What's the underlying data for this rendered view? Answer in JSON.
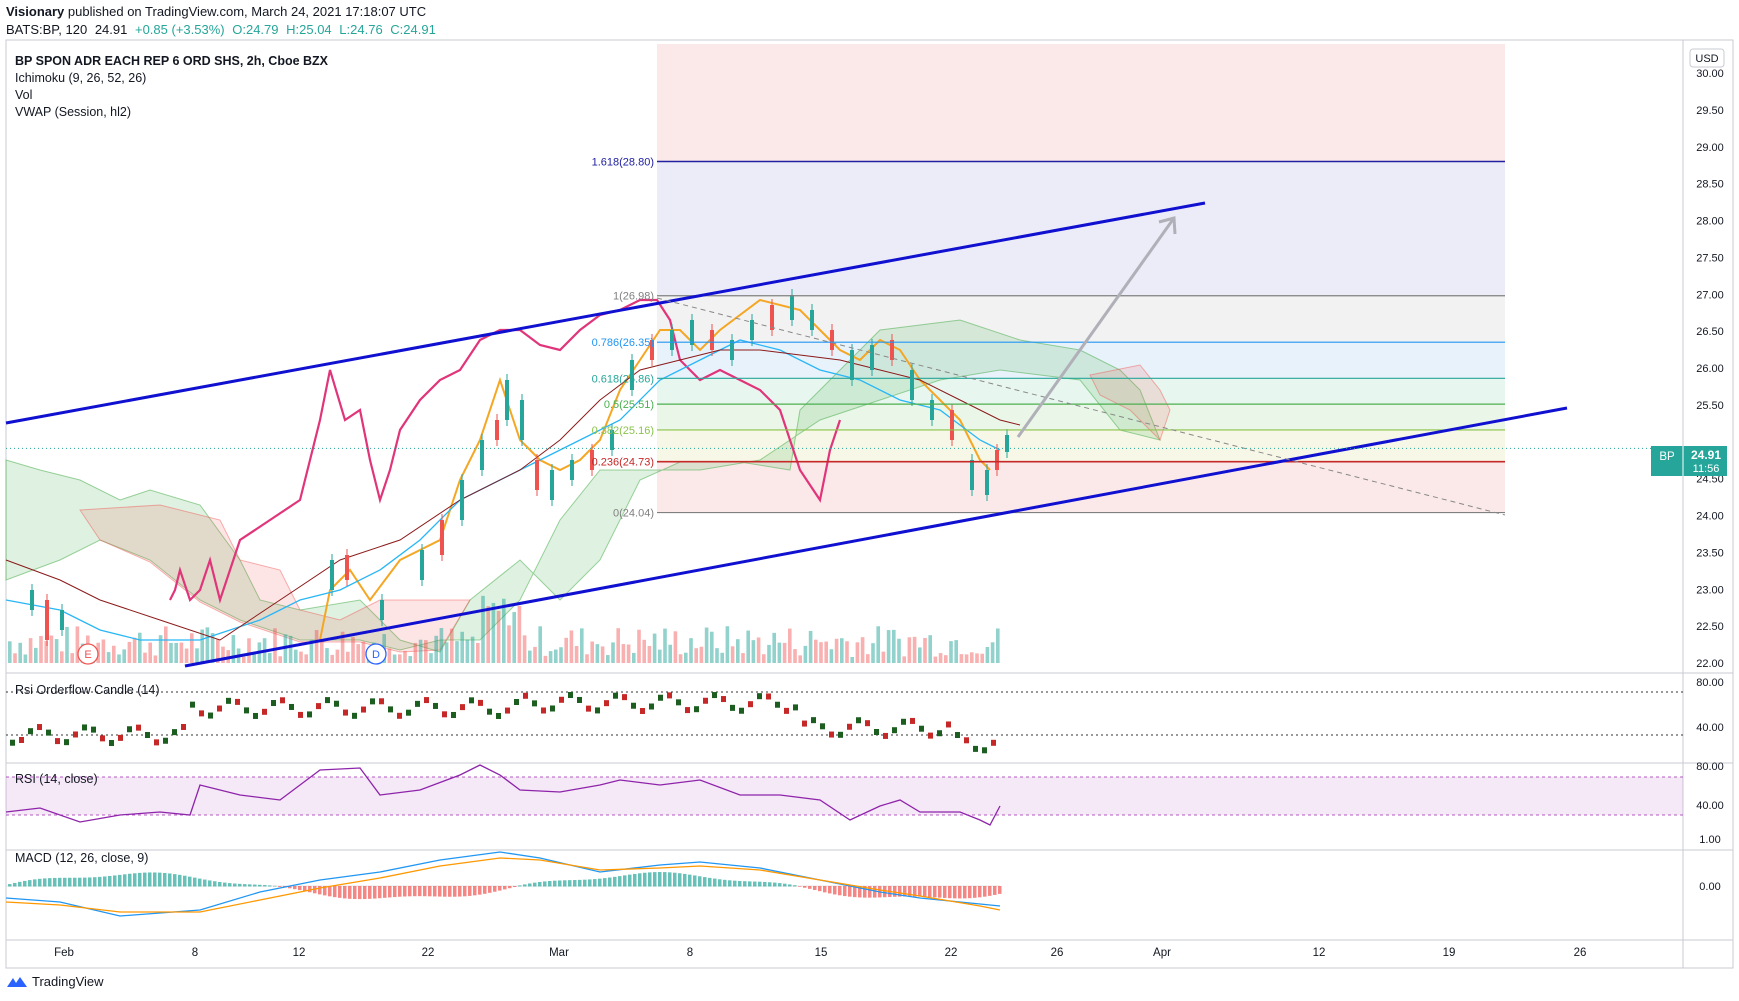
{
  "header": {
    "author": "Visionary",
    "published": "published on TradingView.com, March 24, 2021 17:18:07 UTC",
    "symbol_line": "BATS:BP, 120",
    "price": "24.91",
    "change": "+0.85 (+3.53%)",
    "open": "O:24.79",
    "high": "H:25.04",
    "low": "L:24.76",
    "close": "C:24.91"
  },
  "legend": {
    "title": "BP SPON ADR EACH REP 6 ORD SHS, 2h, Cboe BZX",
    "ichimoku": "Ichimoku (9, 26, 52, 26)",
    "vol": "Vol",
    "vwap": "VWAP (Session, hl2)"
  },
  "panes": {
    "rsi_orderflow": "Rsi Orderflow Candle (14)",
    "rsi": "RSI (14, close)",
    "macd": "MACD (12, 26, close, 9)"
  },
  "price_badge": {
    "symbol": "BP",
    "price": "24.91",
    "timer": "11:56",
    "color": "#26a69a"
  },
  "currency": "USD",
  "footer": {
    "brand": "TradingView"
  },
  "colors": {
    "channel": "#1010d0",
    "fib_ext": "#2020a0",
    "fib_red": "#c62828",
    "rsi_line": "#e0357a",
    "arrow": "#b0b0b8",
    "bull": "#26a69a",
    "bear": "#ef5350"
  },
  "chart_data": {
    "type": "candlestick",
    "title": "BP SPON ADR EACH REP 6 ORD SHS, 2h, Cboe BZX",
    "y_axis": {
      "ylim": [
        22.0,
        30.0
      ],
      "ticks": [
        "30.00",
        "29.50",
        "29.00",
        "28.50",
        "28.00",
        "27.50",
        "27.00",
        "26.50",
        "26.00",
        "25.50",
        "25.00",
        "24.50",
        "24.00",
        "23.50",
        "23.00",
        "22.50",
        "22.00"
      ]
    },
    "x_ticks": [
      "Feb",
      "8",
      "12",
      "22",
      "Mar",
      "8",
      "15",
      "22",
      "26",
      "Apr",
      "12",
      "19",
      "26"
    ],
    "fib_levels": [
      {
        "label": "1.618(28.80)",
        "value": 28.8
      },
      {
        "label": "1(26.98)",
        "value": 26.98
      },
      {
        "label": "0.786(26.35)",
        "value": 26.35
      },
      {
        "label": "0.618(25.86)",
        "value": 25.86
      },
      {
        "label": "0.5(25.51)",
        "value": 25.51
      },
      {
        "label": "0.382(25.16)",
        "value": 25.16
      },
      {
        "label": "0.236(24.73)",
        "value": 24.73
      },
      {
        "label": "0(24.04)",
        "value": 24.04
      }
    ],
    "last_price": 24.91,
    "markers": [
      "E",
      "D"
    ],
    "rsi_orderflow_axis": [
      "80.00",
      "40.00"
    ],
    "rsi_axis": [
      "80.00",
      "40.00"
    ],
    "macd_axis": [
      "1.00",
      "0.00"
    ]
  }
}
